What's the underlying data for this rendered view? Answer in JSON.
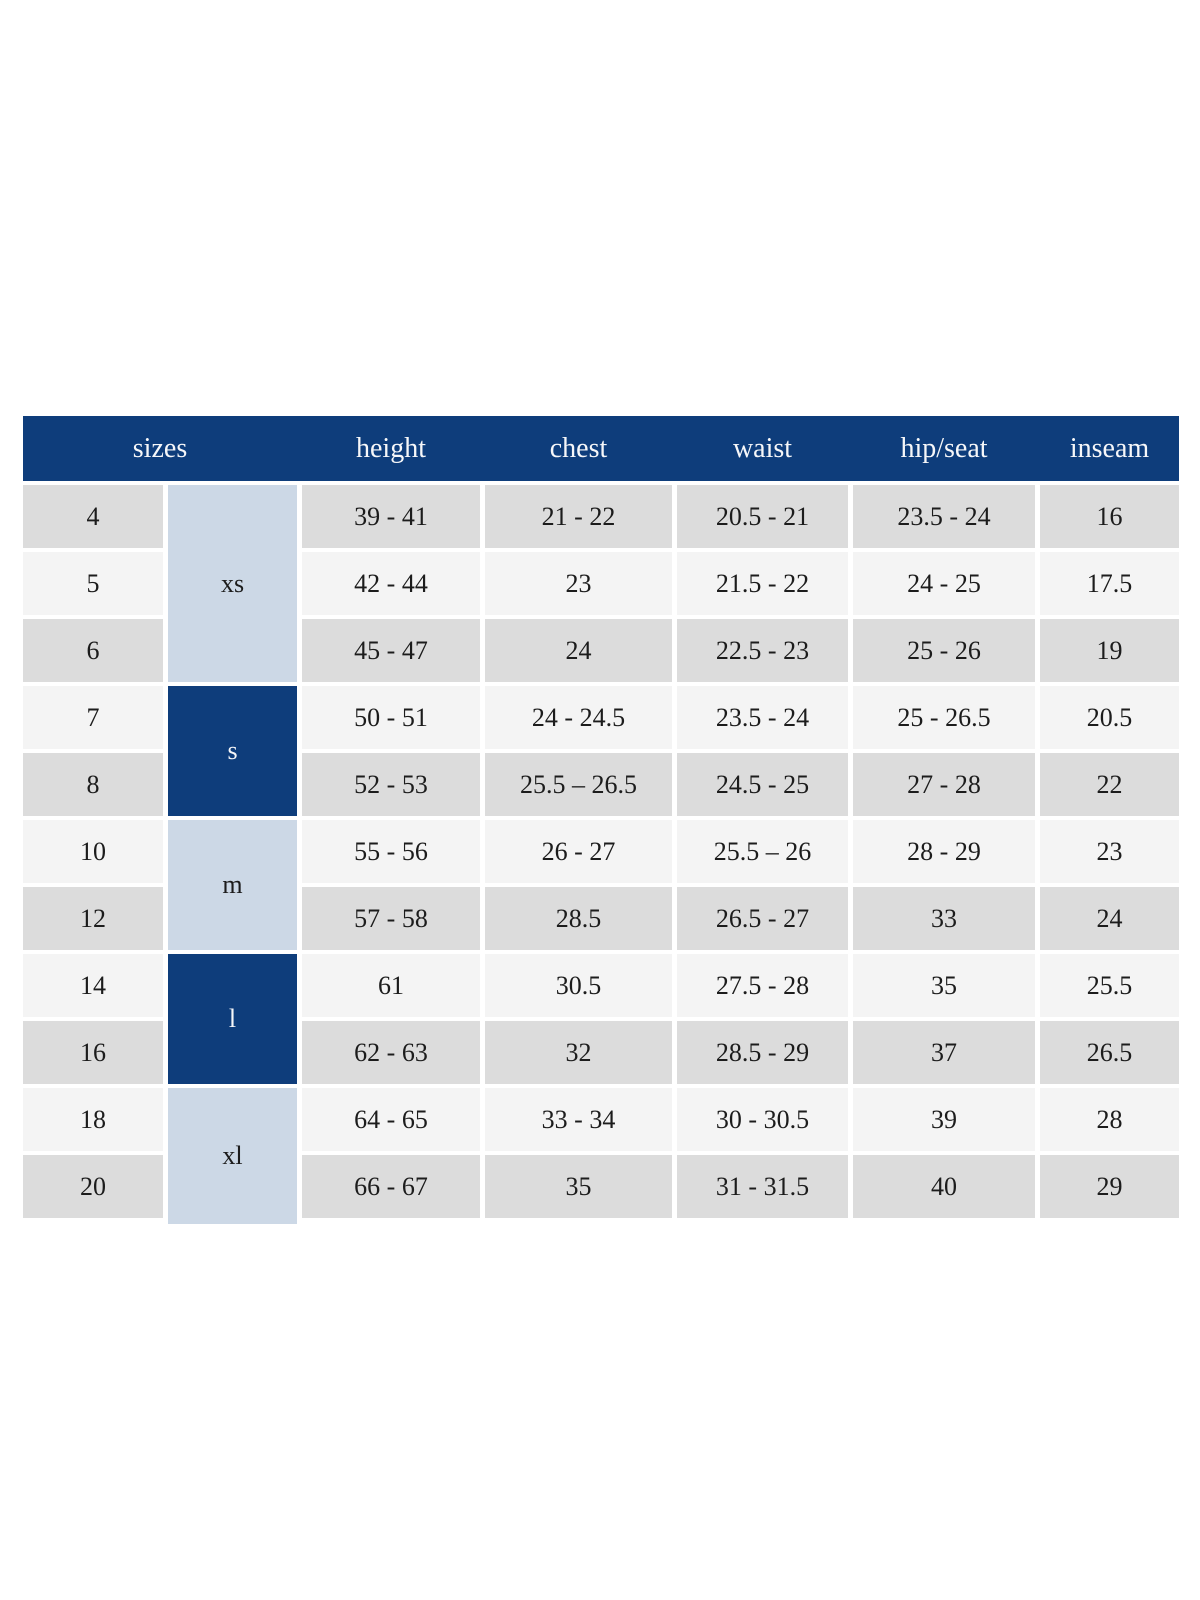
{
  "table": {
    "header": {
      "sizes_label": "sizes",
      "columns": [
        "height",
        "chest",
        "waist",
        "hip/seat",
        "inseam"
      ]
    },
    "size_groups": [
      {
        "label": "xs",
        "rows": [
          "4",
          "5",
          "6"
        ],
        "style": "light"
      },
      {
        "label": "s",
        "rows": [
          "7",
          "8"
        ],
        "style": "dark"
      },
      {
        "label": "m",
        "rows": [
          "10",
          "12"
        ],
        "style": "light"
      },
      {
        "label": "l",
        "rows": [
          "14",
          "16"
        ],
        "style": "dark"
      },
      {
        "label": "xl",
        "rows": [
          "18",
          "20"
        ],
        "style": "light"
      }
    ],
    "rows": [
      {
        "size": "4",
        "height": "39 - 41",
        "chest": "21 - 22",
        "waist": "20.5 - 21",
        "hip_seat": "23.5 - 24",
        "inseam": "16"
      },
      {
        "size": "5",
        "height": "42 - 44",
        "chest": "23",
        "waist": "21.5 - 22",
        "hip_seat": "24 - 25",
        "inseam": "17.5"
      },
      {
        "size": "6",
        "height": "45 - 47",
        "chest": "24",
        "waist": "22.5 - 23",
        "hip_seat": "25 - 26",
        "inseam": "19"
      },
      {
        "size": "7",
        "height": "50 - 51",
        "chest": "24 - 24.5",
        "waist": "23.5 - 24",
        "hip_seat": "25 - 26.5",
        "inseam": "20.5"
      },
      {
        "size": "8",
        "height": "52 - 53",
        "chest": "25.5 – 26.5",
        "waist": "24.5 - 25",
        "hip_seat": "27 - 28",
        "inseam": "22"
      },
      {
        "size": "10",
        "height": "55 - 56",
        "chest": "26 - 27",
        "waist": "25.5 – 26",
        "hip_seat": "28 - 29",
        "inseam": "23"
      },
      {
        "size": "12",
        "height": "57 - 58",
        "chest": "28.5",
        "waist": "26.5 - 27",
        "hip_seat": "33",
        "inseam": "24"
      },
      {
        "size": "14",
        "height": "61",
        "chest": "30.5",
        "waist": "27.5 - 28",
        "hip_seat": "35",
        "inseam": "25.5"
      },
      {
        "size": "16",
        "height": "62 - 63",
        "chest": "32",
        "waist": "28.5 - 29",
        "hip_seat": "37",
        "inseam": "26.5"
      },
      {
        "size": "18",
        "height": "64 - 65",
        "chest": "33 - 34",
        "waist": "30 - 30.5",
        "hip_seat": "39",
        "inseam": "28"
      },
      {
        "size": "20",
        "height": "66 - 67",
        "chest": "35",
        "waist": "31 - 31.5",
        "hip_seat": "40",
        "inseam": "29"
      }
    ],
    "colors": {
      "header_bg": "#0e3d7b",
      "header_text": "#f6f7f9",
      "group_light_bg": "#ccd8e6",
      "group_dark_bg": "#0e3d7b",
      "row_gray_bg": "#dcdcdc",
      "row_light_bg": "#f4f4f4",
      "cell_text": "#1c1c1c",
      "page_bg": "#ffffff"
    }
  }
}
